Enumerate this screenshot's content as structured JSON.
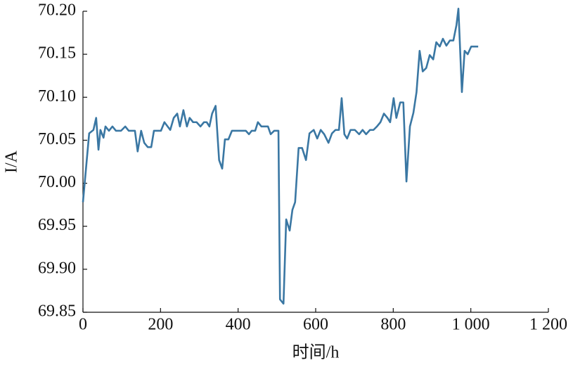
{
  "chart_data": {
    "type": "line",
    "xlabel": "时间/h",
    "ylabel": "I/A",
    "color": "#3a77a3",
    "x": [
      0,
      16,
      27,
      34,
      40,
      45,
      53,
      58,
      67,
      76,
      85,
      98,
      109,
      118,
      134,
      141,
      150,
      158,
      167,
      176,
      183,
      201,
      210,
      225,
      234,
      243,
      250,
      259,
      268,
      275,
      284,
      293,
      303,
      312,
      319,
      326,
      333,
      342,
      351,
      359,
      366,
      375,
      384,
      402,
      420,
      428,
      435,
      444,
      451,
      460,
      477,
      484,
      493,
      504,
      508,
      517,
      524,
      533,
      540,
      547,
      556,
      565,
      575,
      584,
      595,
      604,
      613,
      622,
      633,
      642,
      651,
      660,
      667,
      674,
      681,
      690,
      701,
      712,
      721,
      730,
      740,
      749,
      758,
      767,
      776,
      785,
      792,
      801,
      808,
      818,
      826,
      834,
      843,
      852,
      860,
      868,
      876,
      885,
      894,
      903,
      911,
      920,
      928,
      937,
      946,
      955,
      963,
      968,
      977,
      984,
      992,
      1001,
      1019
    ],
    "values": [
      69.978,
      70.058,
      70.062,
      70.076,
      70.039,
      70.062,
      70.053,
      70.066,
      70.061,
      70.066,
      70.061,
      70.061,
      70.066,
      70.061,
      70.061,
      70.037,
      70.061,
      70.047,
      70.042,
      70.042,
      70.061,
      70.061,
      70.071,
      70.062,
      70.076,
      70.081,
      70.066,
      70.085,
      70.066,
      70.076,
      70.071,
      70.071,
      70.066,
      70.071,
      70.071,
      70.066,
      70.081,
      70.09,
      70.027,
      70.017,
      70.051,
      70.051,
      70.061,
      70.061,
      70.061,
      70.057,
      70.061,
      70.061,
      70.071,
      70.066,
      70.066,
      70.057,
      70.061,
      70.061,
      69.865,
      69.86,
      69.958,
      69.945,
      69.969,
      69.978,
      70.041,
      70.041,
      70.027,
      70.058,
      70.062,
      70.052,
      70.062,
      70.057,
      70.047,
      70.058,
      70.062,
      70.062,
      70.099,
      70.057,
      70.052,
      70.062,
      70.062,
      70.057,
      70.062,
      70.057,
      70.062,
      70.062,
      70.066,
      70.071,
      70.081,
      70.076,
      70.071,
      70.099,
      70.076,
      70.094,
      70.094,
      70.002,
      70.066,
      70.082,
      70.106,
      70.154,
      70.13,
      70.134,
      70.149,
      70.144,
      70.164,
      70.159,
      70.168,
      70.16,
      70.166,
      70.166,
      70.184,
      70.203,
      70.106,
      70.154,
      70.15,
      70.159,
      70.159
    ],
    "xlim": [
      0,
      1200
    ],
    "xticks": [
      0,
      200,
      400,
      600,
      800,
      {
        "value": 1000,
        "label": "1 000"
      },
      {
        "value": 1200,
        "label": "1 200"
      }
    ],
    "ylim": [
      69.85,
      70.2
    ],
    "yticks": [
      69.85,
      {
        "value": 69.9,
        "label": "69.90"
      },
      69.95,
      {
        "value": 70.0,
        "label": "70.00"
      },
      70.05,
      {
        "value": 70.1,
        "label": "70.10"
      },
      70.15,
      {
        "value": 70.2,
        "label": "70.20"
      }
    ]
  }
}
